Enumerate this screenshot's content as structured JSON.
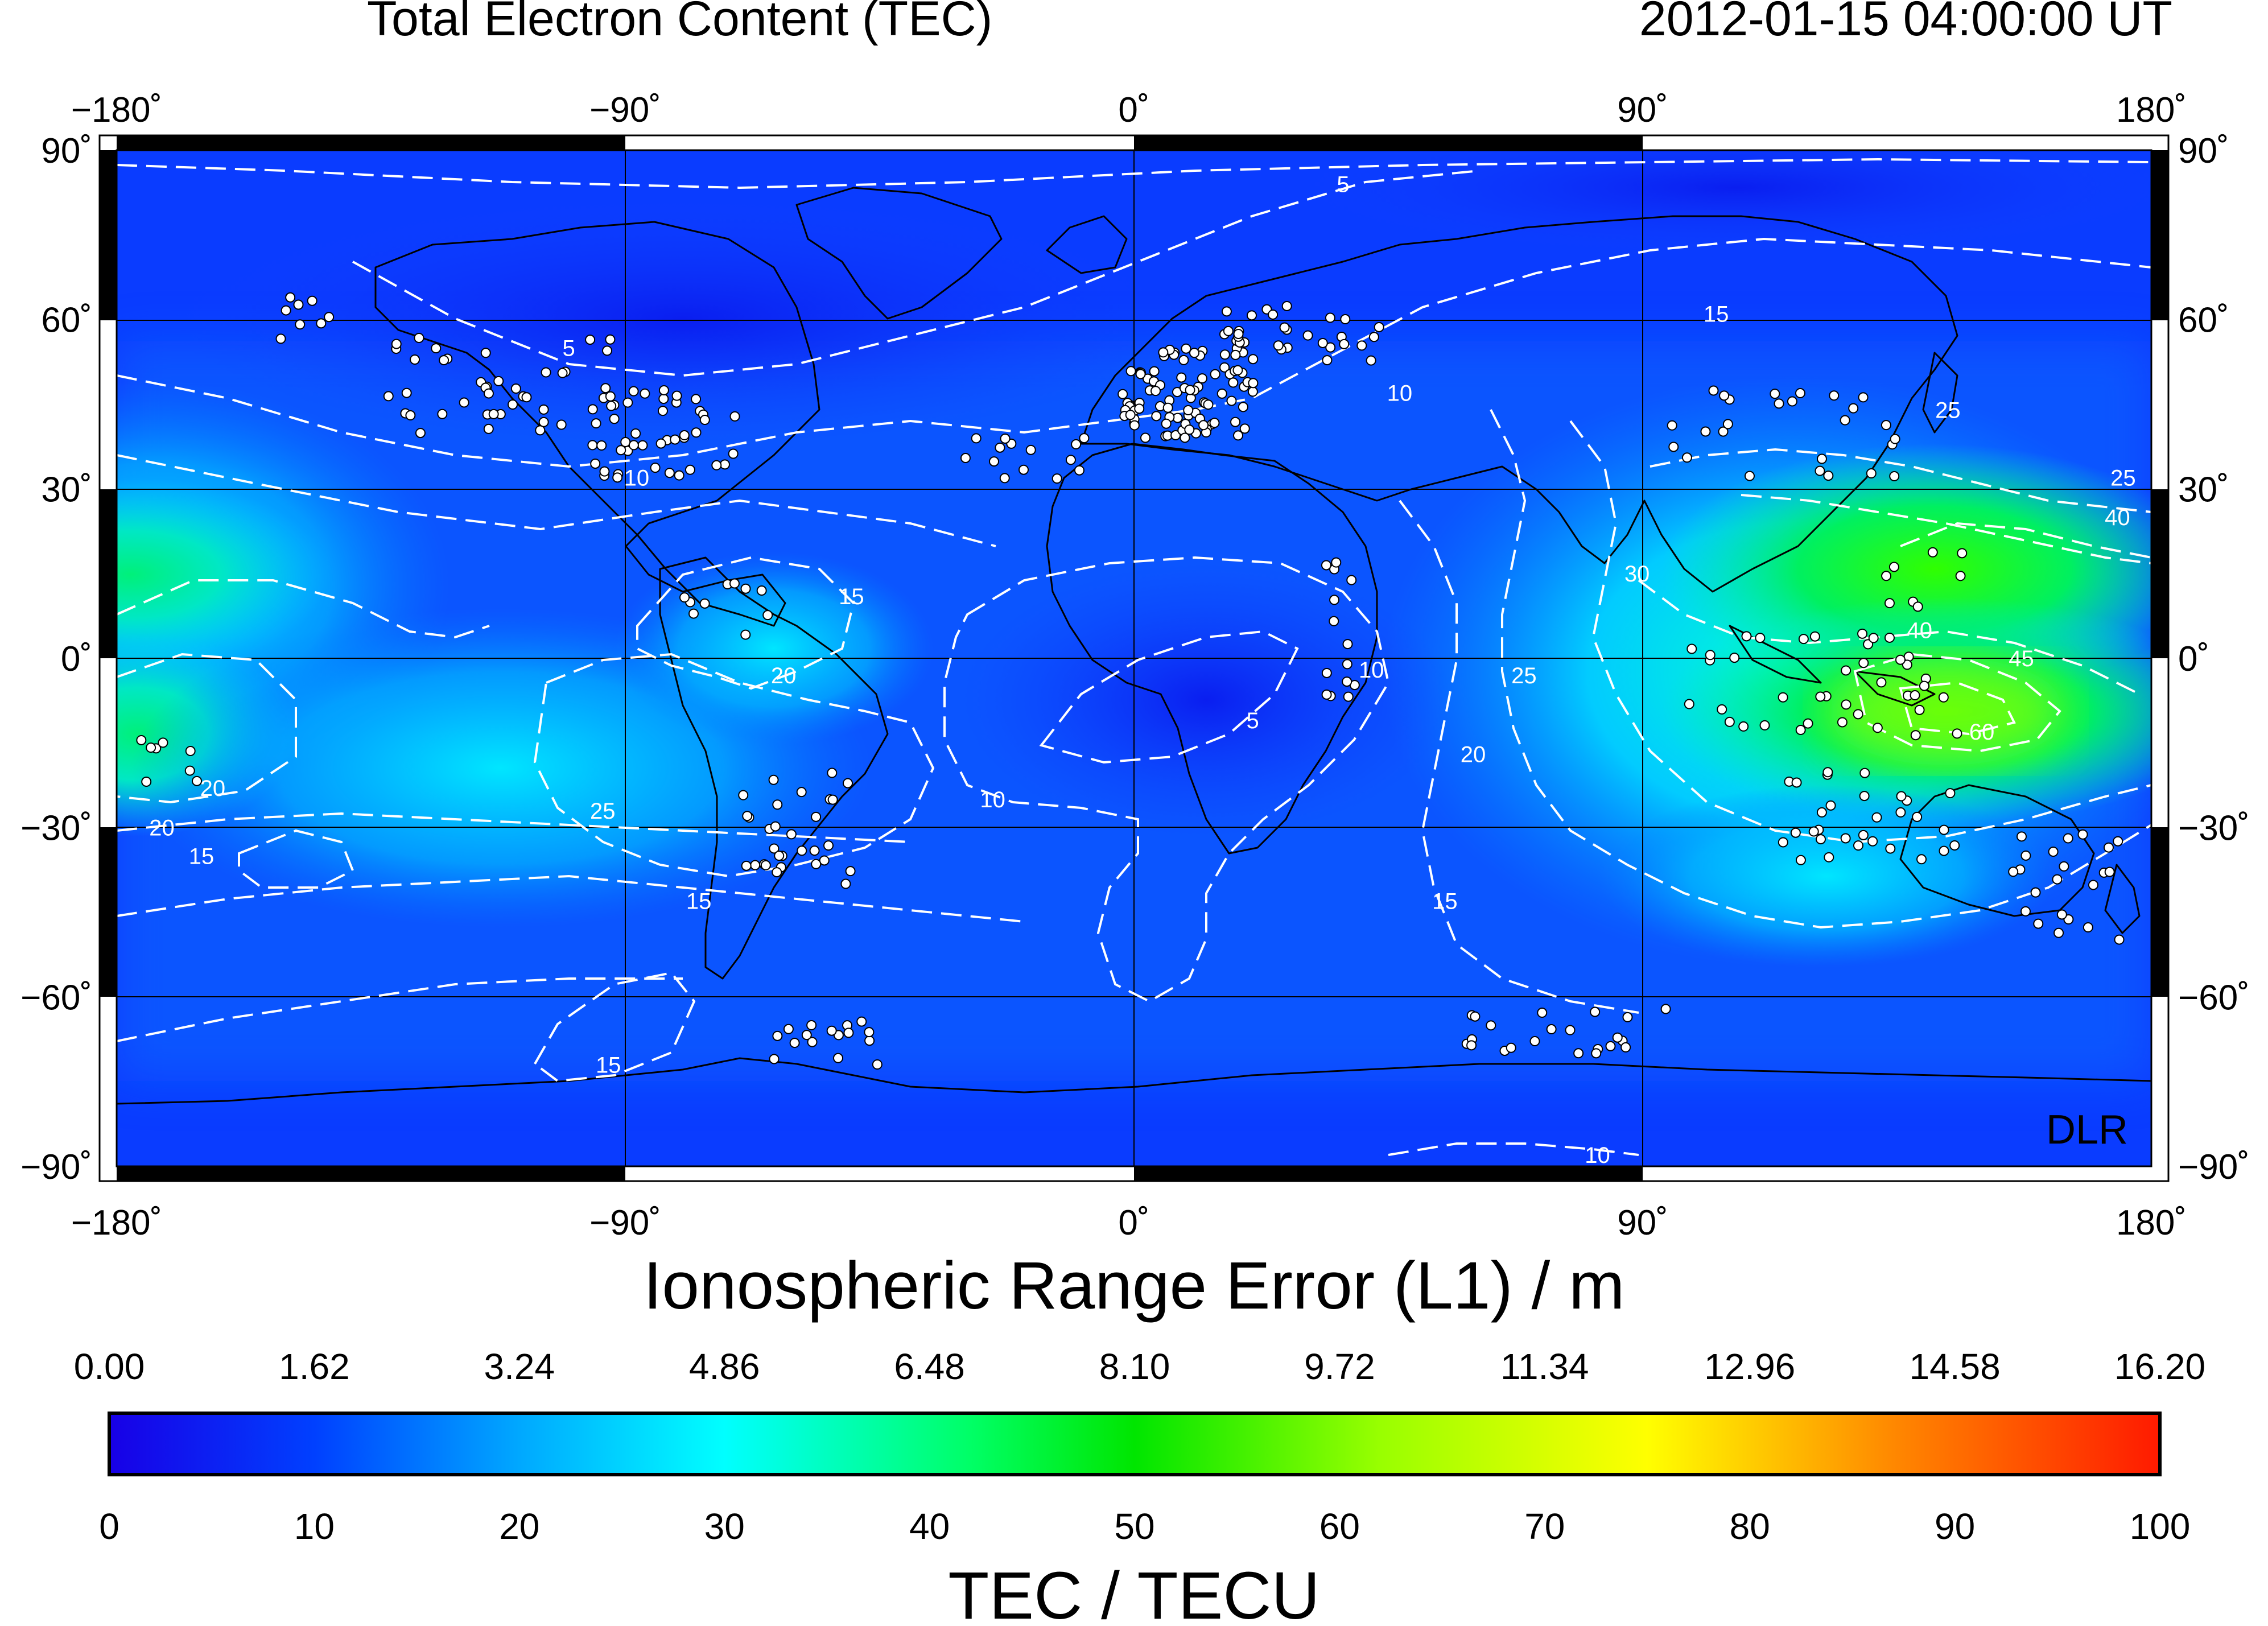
{
  "header": {
    "title": "Total Electron Content (TEC)",
    "timestamp": "2012-01-15  04:00:00 UT"
  },
  "map": {
    "lon_ticks": [
      "−180˚",
      "−90˚",
      "0˚",
      "90˚",
      "180˚"
    ],
    "lat_ticks": [
      "90˚",
      "60˚",
      "30˚",
      "0˚",
      "−30˚",
      "−60˚",
      "−90˚"
    ],
    "credit": "DLR",
    "contour_labels": [
      {
        "text": "5",
        "lon": 37,
        "lat": 84
      },
      {
        "text": "5",
        "lon": -100,
        "lat": 55
      },
      {
        "text": "10",
        "lon": 47,
        "lat": 47
      },
      {
        "text": "10",
        "lon": -88,
        "lat": 32
      },
      {
        "text": "15",
        "lon": 103,
        "lat": 61
      },
      {
        "text": "15",
        "lon": -50,
        "lat": 11
      },
      {
        "text": "20",
        "lon": -62,
        "lat": -3
      },
      {
        "text": "10",
        "lon": 42,
        "lat": -2
      },
      {
        "text": "5",
        "lon": 21,
        "lat": -11
      },
      {
        "text": "10",
        "lon": -25,
        "lat": -25
      },
      {
        "text": "20",
        "lon": 60,
        "lat": -17
      },
      {
        "text": "15",
        "lon": 55,
        "lat": -43
      },
      {
        "text": "25",
        "lon": 69,
        "lat": -3
      },
      {
        "text": "30",
        "lon": 89,
        "lat": 15
      },
      {
        "text": "25",
        "lon": 144,
        "lat": 44
      },
      {
        "text": "25",
        "lon": 175,
        "lat": 32
      },
      {
        "text": "40",
        "lon": 174,
        "lat": 25
      },
      {
        "text": "40",
        "lon": 139,
        "lat": 5
      },
      {
        "text": "45",
        "lon": 157,
        "lat": 0
      },
      {
        "text": "60",
        "lon": 150,
        "lat": -13
      },
      {
        "text": "25",
        "lon": -94,
        "lat": -27
      },
      {
        "text": "20",
        "lon": -163,
        "lat": -23
      },
      {
        "text": "20",
        "lon": -172,
        "lat": -30
      },
      {
        "text": "15",
        "lon": -165,
        "lat": -35
      },
      {
        "text": "15",
        "lon": -77,
        "lat": -43
      },
      {
        "text": "15",
        "lon": -93,
        "lat": -72
      },
      {
        "text": "10",
        "lon": 82,
        "lat": -88
      }
    ]
  },
  "colorbar": {
    "top_label": "Ionospheric Range Error (L1) / m",
    "top_ticks": [
      "0.00",
      "1.62",
      "3.24",
      "4.86",
      "6.48",
      "8.10",
      "9.72",
      "11.34",
      "12.96",
      "14.58",
      "16.20"
    ],
    "bottom_label": "TEC / TECU",
    "bottom_ticks": [
      "0",
      "10",
      "20",
      "30",
      "40",
      "50",
      "60",
      "70",
      "80",
      "90",
      "100"
    ],
    "colors": [
      "#1800e6",
      "#0033ff",
      "#00a8ff",
      "#00ffff",
      "#00ff66",
      "#00e600",
      "#99ff00",
      "#ffff00",
      "#ff8800",
      "#ff1a00"
    ]
  }
}
